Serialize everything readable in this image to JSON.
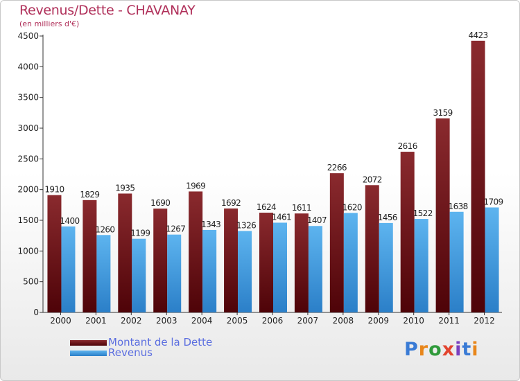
{
  "chart_data": {
    "type": "bar",
    "title": "Revenus/Dette - CHAVANAY",
    "subtitle": "(en milliers d'€)",
    "categories": [
      "2000",
      "2001",
      "2002",
      "2003",
      "2004",
      "2005",
      "2006",
      "2007",
      "2008",
      "2009",
      "2010",
      "2011",
      "2012"
    ],
    "series": [
      {
        "name": "Montant de la Dette",
        "color": "#6e1418",
        "values": [
          1910,
          1829,
          1935,
          1690,
          1969,
          1692,
          1624,
          1611,
          2266,
          2072,
          2616,
          3159,
          4423
        ]
      },
      {
        "name": "Revenus",
        "color": "#49a3e3",
        "values": [
          1400,
          1260,
          1199,
          1267,
          1343,
          1326,
          1461,
          1407,
          1620,
          1456,
          1522,
          1638,
          1709
        ]
      }
    ],
    "ylim": [
      0,
      4500
    ],
    "yticks": [
      0,
      500,
      1000,
      1500,
      2000,
      2500,
      3000,
      3500,
      4000,
      4500
    ],
    "grid": false,
    "legend_position": "bottom-left"
  },
  "logo": {
    "text": "Proxiti",
    "letter_colors": [
      "#3a7bd5",
      "#e8861a",
      "#2f9a3a",
      "#e2442f",
      "#7a3fbf",
      "#3a7bd5",
      "#e8861a"
    ]
  }
}
